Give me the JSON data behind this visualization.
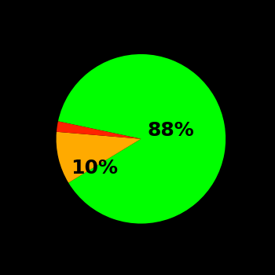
{
  "slices": [
    88,
    10,
    2
  ],
  "colors": [
    "#00ff00",
    "#ffaa00",
    "#ff2200"
  ],
  "labels": [
    "88%",
    "10%",
    ""
  ],
  "background_color": "#000000",
  "text_color": "#000000",
  "label_fontsize": 18,
  "label_fontweight": "bold",
  "startangle": 168,
  "figsize": [
    3.5,
    3.5
  ],
  "dpi": 100
}
